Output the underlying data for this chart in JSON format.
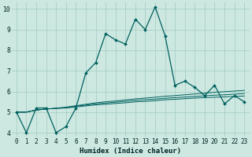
{
  "title": "",
  "xlabel": "Humidex (Indice chaleur)",
  "ylabel": "",
  "bg_color": "#cce8e0",
  "grid_color": "#aacfc8",
  "line_color": "#006060",
  "main_y": [
    5.0,
    4.0,
    5.2,
    5.2,
    4.0,
    4.3,
    5.2,
    6.9,
    7.4,
    8.8,
    8.5,
    8.3,
    9.5,
    9.0,
    10.1,
    8.7,
    6.3,
    6.5,
    6.2,
    5.8,
    6.3,
    5.4,
    5.8,
    5.5
  ],
  "flat1_y": [
    5.0,
    5.0,
    5.1,
    5.15,
    5.18,
    5.2,
    5.25,
    5.3,
    5.35,
    5.38,
    5.42,
    5.45,
    5.5,
    5.52,
    5.55,
    5.6,
    5.62,
    5.65,
    5.68,
    5.7,
    5.72,
    5.74,
    5.76,
    5.78
  ],
  "flat2_y": [
    5.0,
    5.0,
    5.1,
    5.15,
    5.18,
    5.22,
    5.28,
    5.34,
    5.4,
    5.44,
    5.48,
    5.52,
    5.57,
    5.6,
    5.63,
    5.67,
    5.7,
    5.73,
    5.76,
    5.79,
    5.82,
    5.84,
    5.87,
    5.9
  ],
  "flat3_y": [
    5.0,
    5.0,
    5.1,
    5.15,
    5.19,
    5.24,
    5.31,
    5.38,
    5.45,
    5.5,
    5.54,
    5.59,
    5.64,
    5.68,
    5.72,
    5.77,
    5.8,
    5.84,
    5.88,
    5.92,
    5.96,
    5.99,
    6.02,
    6.05
  ],
  "x": [
    0,
    1,
    2,
    3,
    4,
    5,
    6,
    7,
    8,
    9,
    10,
    11,
    12,
    13,
    14,
    15,
    16,
    17,
    18,
    19,
    20,
    21,
    22,
    23
  ],
  "ylim": [
    3.8,
    10.3
  ],
  "xlim": [
    -0.5,
    23.5
  ],
  "yticks": [
    4,
    5,
    6,
    7,
    8,
    9,
    10
  ],
  "xticks": [
    0,
    1,
    2,
    3,
    4,
    5,
    6,
    7,
    8,
    9,
    10,
    11,
    12,
    13,
    14,
    15,
    16,
    17,
    18,
    19,
    20,
    21,
    22,
    23
  ],
  "tick_fontsize": 5.5,
  "xlabel_fontsize": 6.5
}
